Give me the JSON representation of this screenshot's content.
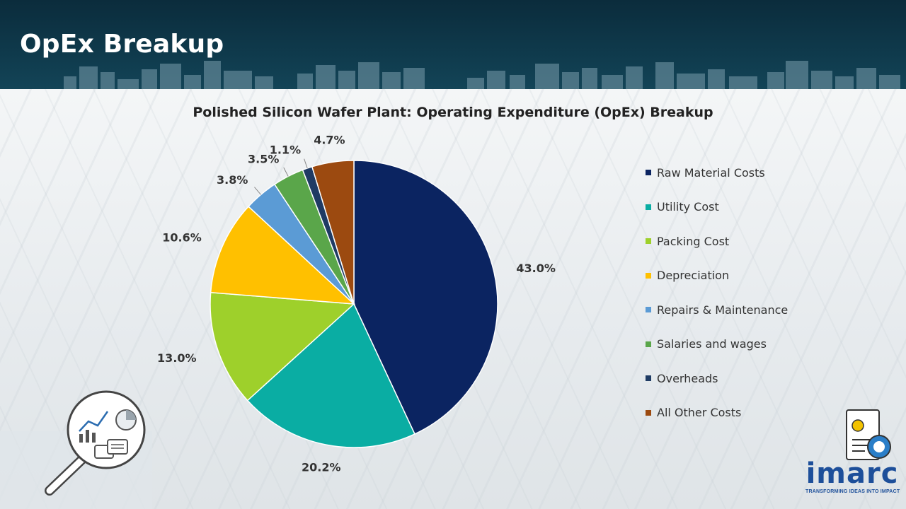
{
  "page": {
    "title": "OpEx Breakup"
  },
  "brand": {
    "name": "imarc",
    "tagline": "TRANSFORMING IDEAS INTO IMPACT"
  },
  "chart_data": {
    "type": "pie",
    "title": "Polished Silicon Wafer Plant: Operating Expenditure (OpEx) Breakup",
    "legend_position": "right",
    "slices": [
      {
        "label": "Raw Material Costs",
        "value": 43.0,
        "value_label": "43.0%",
        "color": "#0b2461"
      },
      {
        "label": "Utility Cost",
        "value": 20.2,
        "value_label": "20.2%",
        "color": "#0aada3"
      },
      {
        "label": "Packing Cost",
        "value": 13.0,
        "value_label": "13.0%",
        "color": "#9ed02b"
      },
      {
        "label": "Depreciation",
        "value": 10.6,
        "value_label": "10.6%",
        "color": "#ffc000"
      },
      {
        "label": "Repairs & Maintenance",
        "value": 3.8,
        "value_label": "3.8%",
        "color": "#5b9bd5"
      },
      {
        "label": "Salaries and wages",
        "value": 3.5,
        "value_label": "3.5%",
        "color": "#5aa64a"
      },
      {
        "label": "Overheads",
        "value": 1.1,
        "value_label": "1.1%",
        "color": "#1f3b64"
      },
      {
        "label": "All Other Costs",
        "value": 4.7,
        "value_label": "4.7%",
        "color": "#9c4a10"
      }
    ]
  }
}
